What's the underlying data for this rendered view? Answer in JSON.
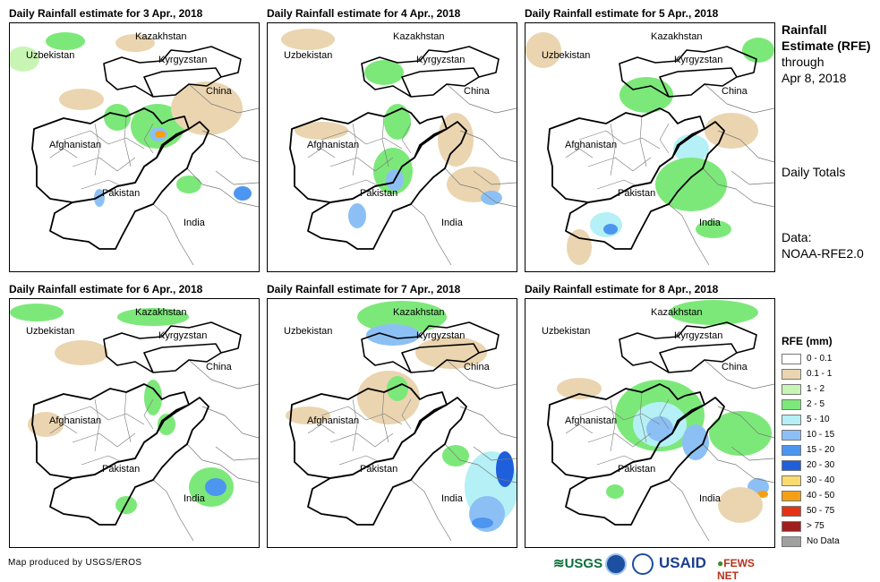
{
  "panels": [
    {
      "title": "Daily Rainfall estimate for 3 Apr., 2018"
    },
    {
      "title": "Daily Rainfall estimate for 4 Apr., 2018"
    },
    {
      "title": "Daily Rainfall estimate for 5 Apr., 2018"
    },
    {
      "title": "Daily Rainfall estimate for 6 Apr., 2018"
    },
    {
      "title": "Daily Rainfall estimate for 7 Apr., 2018"
    },
    {
      "title": "Daily Rainfall estimate for 8 Apr., 2018"
    }
  ],
  "countries": {
    "kazakhstan": "Kazakhstan",
    "uzbekistan": "Uzbekistan",
    "kyrgyzstan": "Kyrgyzstan",
    "china": "China",
    "afghanistan": "Afghanistan",
    "pakistan": "Pakistan",
    "india": "India"
  },
  "side": {
    "title_bold": "Rainfall Estimate (RFE)",
    "through": "through",
    "date": "Apr 8, 2018",
    "totals": "Daily Totals",
    "data_label": "Data:",
    "data_source": "NOAA-RFE2.0"
  },
  "legend": {
    "title": "RFE (mm)",
    "items": [
      {
        "label": "0 - 0.1",
        "color": "#ffffff"
      },
      {
        "label": "0.1 - 1",
        "color": "#ead5b0"
      },
      {
        "label": "1 - 2",
        "color": "#c8f5b4"
      },
      {
        "label": "2 - 5",
        "color": "#7de87a"
      },
      {
        "label": "5 - 10",
        "color": "#b4f0f5"
      },
      {
        "label": "10 - 15",
        "color": "#8cc0f5"
      },
      {
        "label": "15 - 20",
        "color": "#4c96f0"
      },
      {
        "label": "20 - 30",
        "color": "#1e5fdc"
      },
      {
        "label": "30 - 40",
        "color": "#fadc6e"
      },
      {
        "label": "40 - 50",
        "color": "#f5a014"
      },
      {
        "label": "50 - 75",
        "color": "#e63214"
      },
      {
        "label": "> 75",
        "color": "#a01e1e"
      },
      {
        "label": "No Data",
        "color": "#a0a0a0"
      }
    ]
  },
  "credit": "Map produced by USGS/EROS",
  "logos": {
    "usgs": "USGS",
    "usaid": "USAID",
    "fews": "FEWS NET"
  }
}
